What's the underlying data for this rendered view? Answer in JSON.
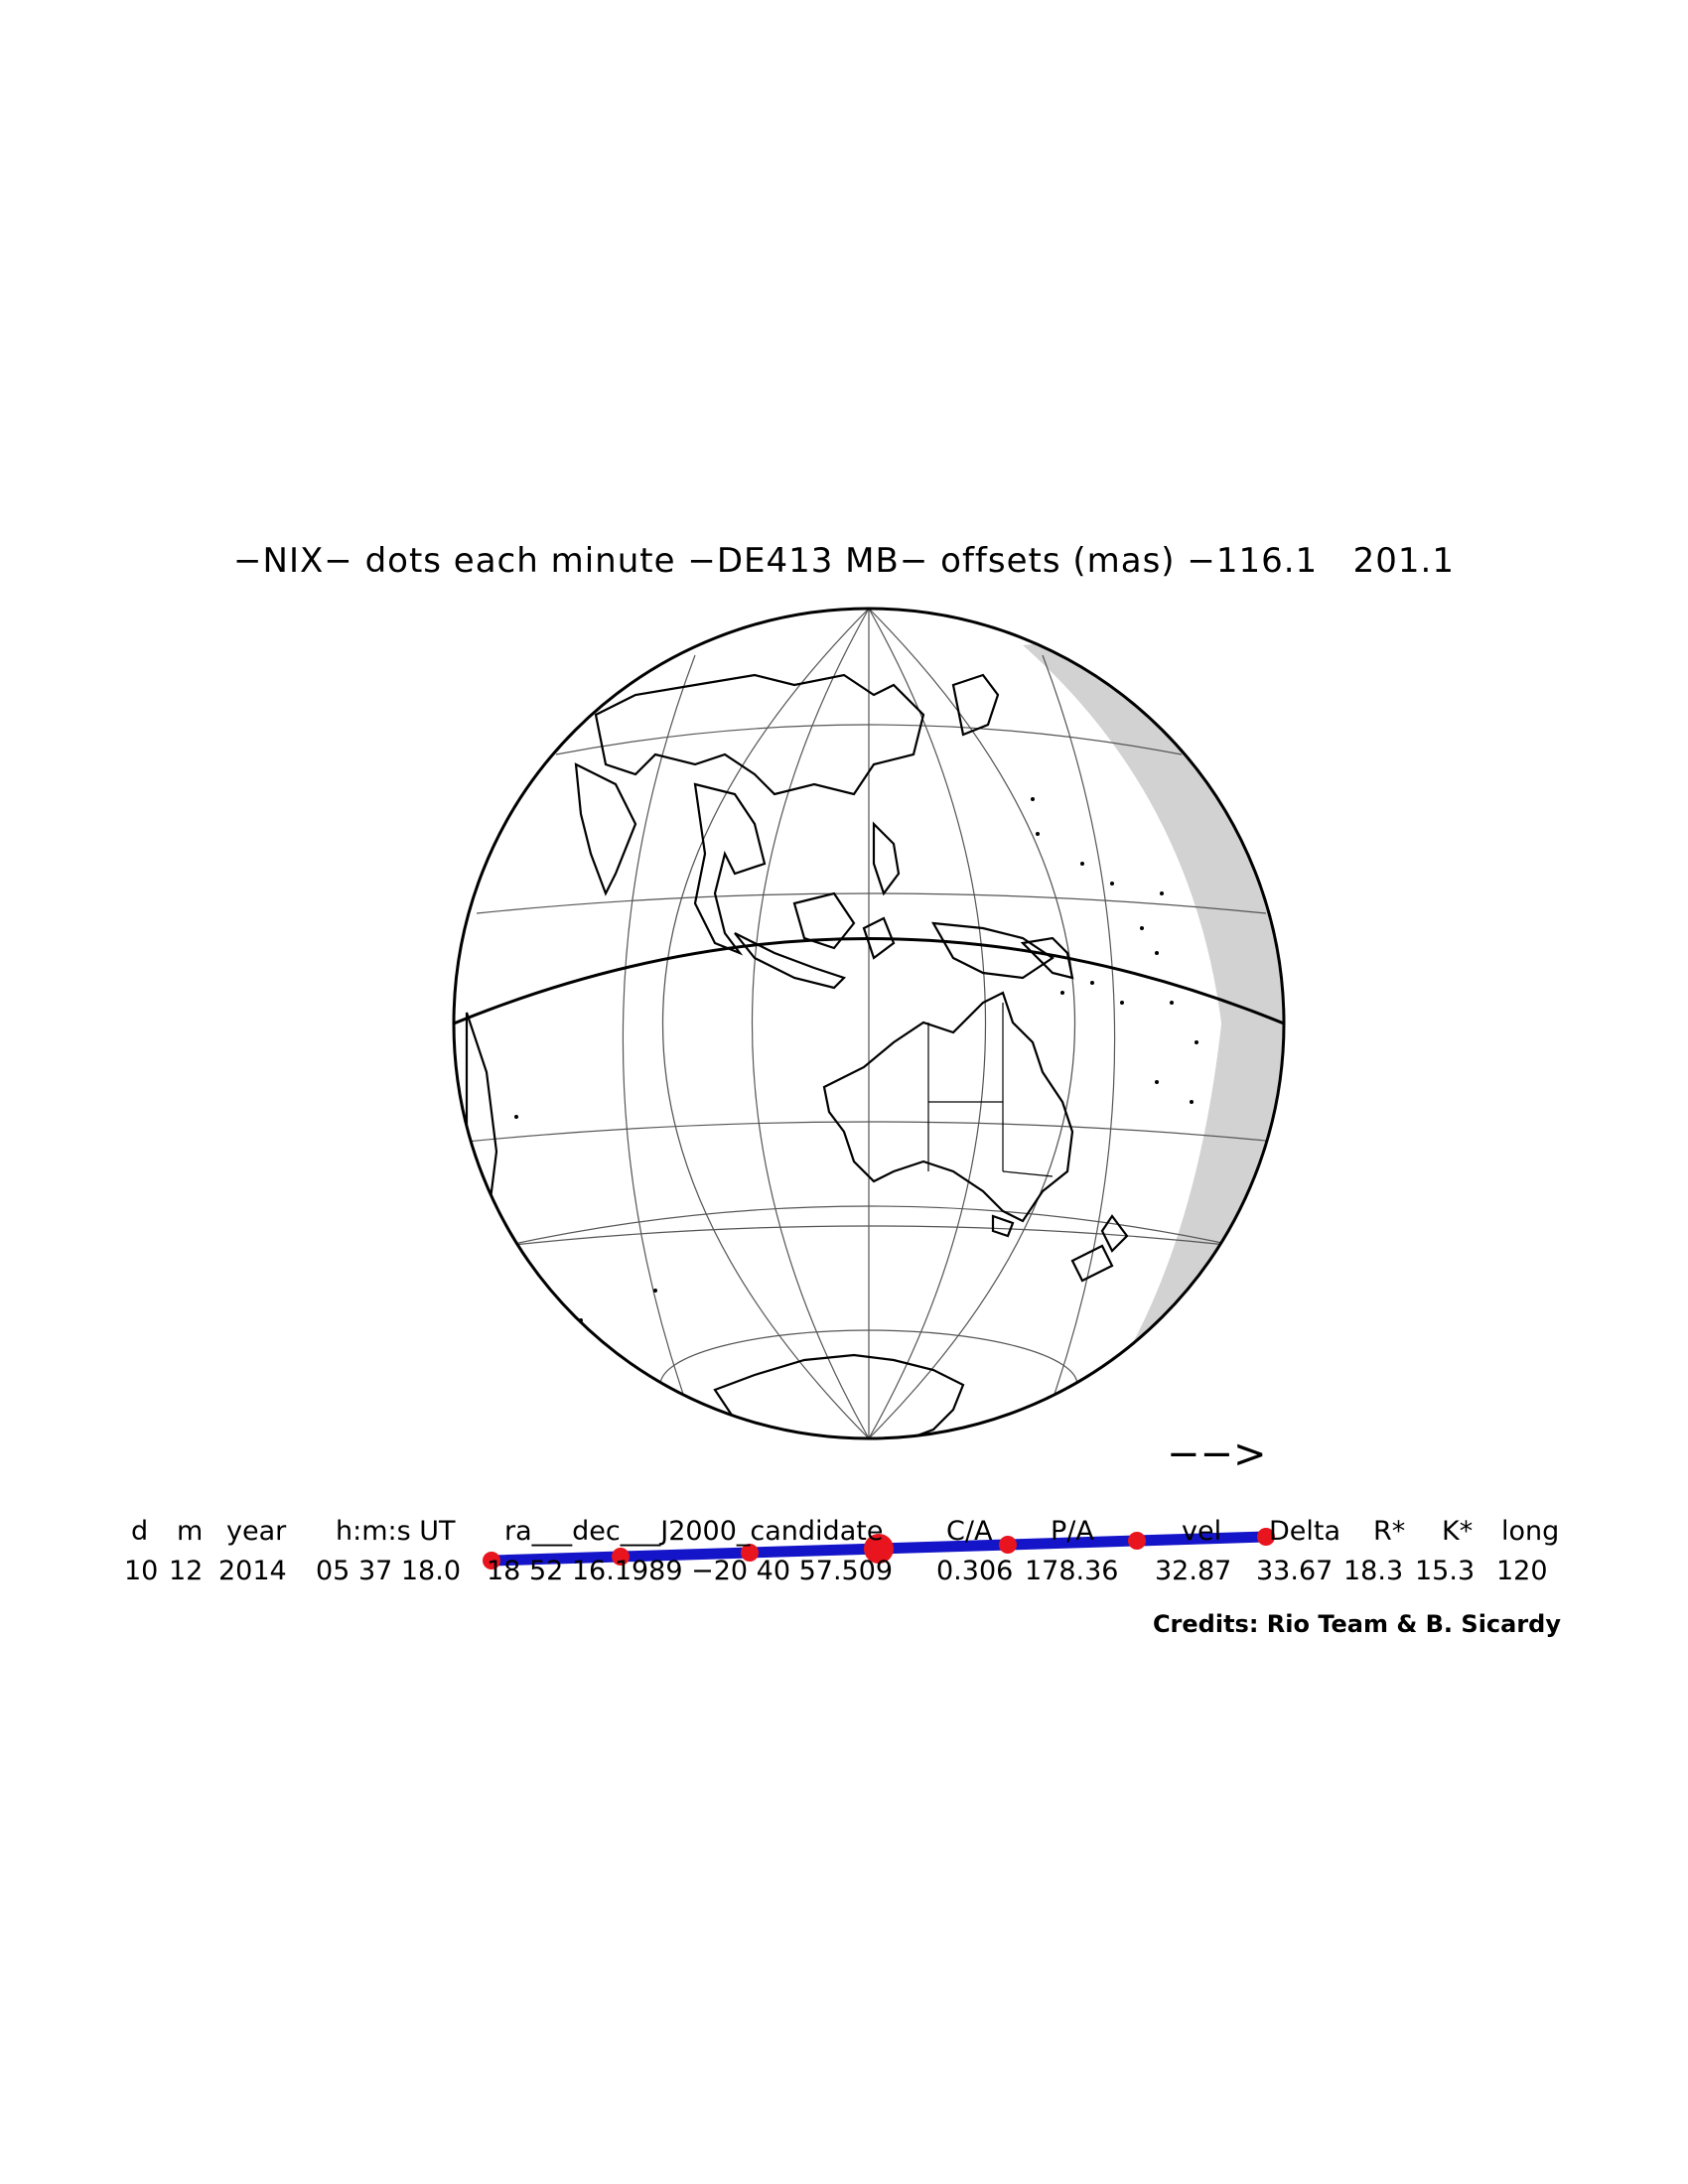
{
  "title": "−NIX− dots each minute −DE413 MB− offsets (mas) −116.1   201.1",
  "direction_arrow": "−−>",
  "table": {
    "headers": [
      "d",
      "m",
      "year",
      "h:m:s UT",
      "ra___dec___J2000_candidate",
      "C/A",
      "P/A",
      "vel",
      "Delta",
      "R*",
      "K*",
      "long"
    ],
    "values": [
      "10",
      "12",
      "2014",
      "05 37 18.0",
      "18 52 16.1989 −20 40 57.509",
      "0.306",
      "178.36",
      "32.87",
      "33.67",
      "18.3",
      "15.3",
      "120"
    ]
  },
  "credits": "Credits: Rio Team & B. Sicardy",
  "colors": {
    "track": "#1414c8",
    "dots": "#e8141e",
    "shadow_limb": "#d2d2d2",
    "graticule": "#555555",
    "coast": "#000000"
  },
  "occultation_track": {
    "dots_per": "minute",
    "dot_count": 7,
    "central_dot_index": 3
  }
}
